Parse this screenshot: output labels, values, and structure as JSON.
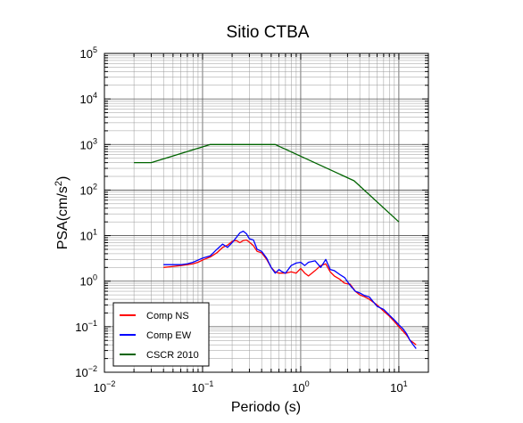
{
  "chart_data": {
    "type": "line",
    "title": "Sitio CTBA",
    "xlabel": "Periodo (s)",
    "ylabel": "PSA(cm/s2)",
    "ylabel_base": "PSA(cm/s",
    "ylabel_sup": "2",
    "ylabel_close": ")",
    "xscale": "log",
    "yscale": "log",
    "xlim": [
      0.01,
      20
    ],
    "ylim": [
      0.01,
      100000
    ],
    "grid": true,
    "legend_position": "bottom-left",
    "x_ticks": [
      {
        "value": 0.01,
        "base": "10",
        "exp": "−2"
      },
      {
        "value": 0.1,
        "base": "10",
        "exp": "−1"
      },
      {
        "value": 1,
        "base": "10",
        "exp": "0"
      },
      {
        "value": 10,
        "base": "10",
        "exp": "1"
      }
    ],
    "y_ticks": [
      {
        "value": 0.01,
        "base": "10",
        "exp": "−2"
      },
      {
        "value": 0.1,
        "base": "10",
        "exp": "−1"
      },
      {
        "value": 1,
        "base": "10",
        "exp": "0"
      },
      {
        "value": 10,
        "base": "10",
        "exp": "1"
      },
      {
        "value": 100,
        "base": "10",
        "exp": "2"
      },
      {
        "value": 1000,
        "base": "10",
        "exp": "3"
      },
      {
        "value": 10000,
        "base": "10",
        "exp": "4"
      },
      {
        "value": 100000,
        "base": "10",
        "exp": "5"
      }
    ],
    "series": [
      {
        "name": "Comp NS",
        "color": "#ff0000",
        "x": [
          0.04,
          0.05,
          0.06,
          0.07,
          0.08,
          0.09,
          0.1,
          0.12,
          0.14,
          0.16,
          0.18,
          0.2,
          0.22,
          0.24,
          0.26,
          0.28,
          0.3,
          0.33,
          0.36,
          0.4,
          0.45,
          0.5,
          0.55,
          0.6,
          0.65,
          0.7,
          0.8,
          0.9,
          1.0,
          1.1,
          1.2,
          1.4,
          1.6,
          1.8,
          2.0,
          2.2,
          2.5,
          2.8,
          3.2,
          3.6,
          4.0,
          4.5,
          5.0,
          6.0,
          7.0,
          8.0,
          9.0,
          10.0,
          11.0,
          12.0,
          13.0,
          14.0,
          15.0
        ],
        "y": [
          2.0,
          2.1,
          2.2,
          2.3,
          2.4,
          2.6,
          2.9,
          3.4,
          4.2,
          5.5,
          6.2,
          7.5,
          7.8,
          7.0,
          7.8,
          8.0,
          7.2,
          6.0,
          4.5,
          4.2,
          3.0,
          2.0,
          1.6,
          1.5,
          1.5,
          1.5,
          1.6,
          1.5,
          1.9,
          1.5,
          1.3,
          1.7,
          2.2,
          2.4,
          1.6,
          1.3,
          1.1,
          0.9,
          0.85,
          0.6,
          0.5,
          0.45,
          0.4,
          0.3,
          0.22,
          0.17,
          0.13,
          0.1,
          0.08,
          0.065,
          0.05,
          0.045,
          0.04
        ]
      },
      {
        "name": "Comp EW",
        "color": "#0000ff",
        "x": [
          0.04,
          0.05,
          0.06,
          0.07,
          0.08,
          0.09,
          0.1,
          0.12,
          0.14,
          0.16,
          0.18,
          0.2,
          0.22,
          0.24,
          0.26,
          0.28,
          0.3,
          0.33,
          0.36,
          0.4,
          0.45,
          0.5,
          0.55,
          0.6,
          0.65,
          0.7,
          0.8,
          0.9,
          1.0,
          1.1,
          1.2,
          1.4,
          1.6,
          1.8,
          2.0,
          2.2,
          2.5,
          2.8,
          3.2,
          3.6,
          4.0,
          4.5,
          5.0,
          6.0,
          7.0,
          8.0,
          9.0,
          10.0,
          11.0,
          12.0,
          13.0,
          14.0,
          15.0
        ],
        "y": [
          2.3,
          2.3,
          2.3,
          2.4,
          2.6,
          2.9,
          3.2,
          3.6,
          5.0,
          6.5,
          5.5,
          7.0,
          9.0,
          11.5,
          12.5,
          11.0,
          8.5,
          8.0,
          5.0,
          4.5,
          3.2,
          2.0,
          1.5,
          1.8,
          1.6,
          1.5,
          2.2,
          2.5,
          2.6,
          2.2,
          2.6,
          2.8,
          2.0,
          3.0,
          1.8,
          1.7,
          1.4,
          1.2,
          0.8,
          0.6,
          0.55,
          0.48,
          0.45,
          0.28,
          0.24,
          0.18,
          0.14,
          0.11,
          0.09,
          0.07,
          0.05,
          0.04,
          0.033
        ]
      },
      {
        "name": "CSCR 2010",
        "color": "#006400",
        "x": [
          0.02,
          0.03,
          0.12,
          0.55,
          3.5,
          10.0
        ],
        "y": [
          400,
          400,
          1000,
          1000,
          160,
          20
        ]
      }
    ]
  }
}
